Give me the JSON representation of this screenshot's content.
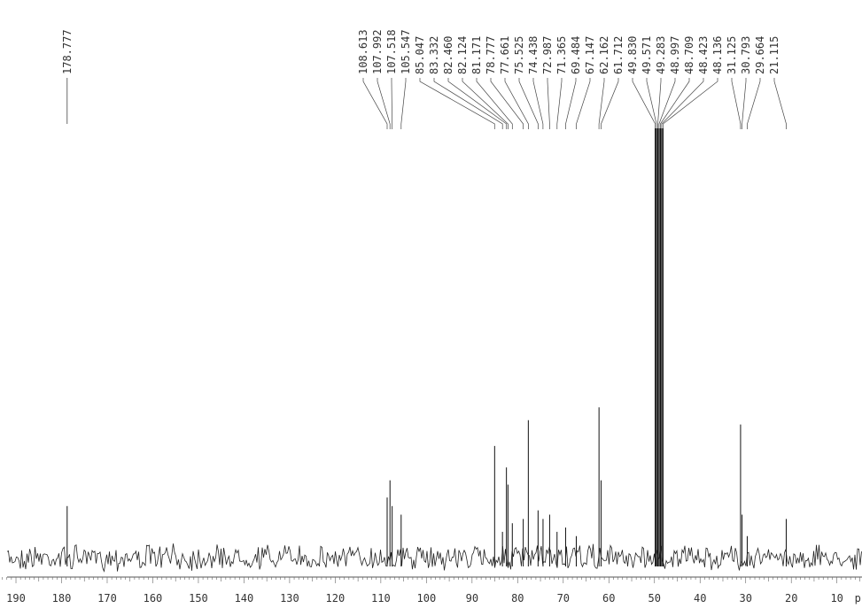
{
  "chart_data": {
    "type": "line",
    "title": "",
    "xlabel": "",
    "ylabel": "",
    "x_unit_label": "p",
    "xlim": [
      193.5,
      4.5
    ],
    "x_direction": "decreasing",
    "ylim": [
      0,
      1
    ],
    "grid": false,
    "x_ticks": [
      "190",
      "180",
      "170",
      "160",
      "150",
      "140",
      "130",
      "120",
      "110",
      "100",
      "90",
      "80",
      "70",
      "60",
      "50",
      "40",
      "30",
      "20",
      "10"
    ],
    "peak_labels_group1": [
      "178.777"
    ],
    "peak_labels_group2": [
      "108.613",
      "107.992",
      "107.518",
      "105.547",
      "85.047",
      "83.332",
      "82.460",
      "82.124",
      "81.171",
      "78.777",
      "77.661",
      "75.525",
      "74.438",
      "72.987",
      "71.365",
      "69.484",
      "67.147",
      "62.162",
      "61.712",
      "49.830",
      "49.571",
      "49.283",
      "48.997",
      "48.709",
      "48.423",
      "48.136",
      "31.125",
      "30.793",
      "29.664",
      "21.115"
    ],
    "peaks": [
      {
        "ppm": 178.777,
        "intensity": 0.12
      },
      {
        "ppm": 108.613,
        "intensity": 0.14
      },
      {
        "ppm": 107.992,
        "intensity": 0.18
      },
      {
        "ppm": 107.518,
        "intensity": 0.12
      },
      {
        "ppm": 105.547,
        "intensity": 0.1
      },
      {
        "ppm": 85.047,
        "intensity": 0.26
      },
      {
        "ppm": 83.332,
        "intensity": 0.06
      },
      {
        "ppm": 82.46,
        "intensity": 0.21
      },
      {
        "ppm": 82.124,
        "intensity": 0.17
      },
      {
        "ppm": 81.171,
        "intensity": 0.08
      },
      {
        "ppm": 78.777,
        "intensity": 0.09
      },
      {
        "ppm": 77.661,
        "intensity": 0.32
      },
      {
        "ppm": 75.525,
        "intensity": 0.11
      },
      {
        "ppm": 74.438,
        "intensity": 0.09
      },
      {
        "ppm": 72.987,
        "intensity": 0.1
      },
      {
        "ppm": 71.365,
        "intensity": 0.06
      },
      {
        "ppm": 69.484,
        "intensity": 0.07
      },
      {
        "ppm": 67.147,
        "intensity": 0.05
      },
      {
        "ppm": 62.162,
        "intensity": 0.35
      },
      {
        "ppm": 61.712,
        "intensity": 0.18
      },
      {
        "ppm": 49.83,
        "intensity": 1.0
      },
      {
        "ppm": 49.571,
        "intensity": 1.0
      },
      {
        "ppm": 49.283,
        "intensity": 1.0
      },
      {
        "ppm": 48.997,
        "intensity": 1.0
      },
      {
        "ppm": 48.709,
        "intensity": 1.0
      },
      {
        "ppm": 48.423,
        "intensity": 1.0
      },
      {
        "ppm": 48.136,
        "intensity": 1.0
      },
      {
        "ppm": 31.125,
        "intensity": 0.31
      },
      {
        "ppm": 30.793,
        "intensity": 0.1
      },
      {
        "ppm": 29.664,
        "intensity": 0.05
      },
      {
        "ppm": 21.115,
        "intensity": 0.09
      }
    ]
  }
}
